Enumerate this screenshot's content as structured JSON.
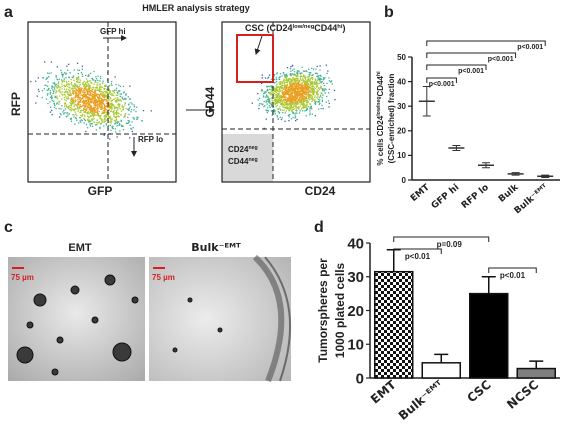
{
  "panel_labels": [
    "a",
    "b",
    "c",
    "d"
  ],
  "flow": {
    "title": "HMLER analysis strategy",
    "left": {
      "x_label": "GFP",
      "y_label": "RFP",
      "gate_x": "GFP hi",
      "gate_y": "RFP lo"
    },
    "right": {
      "x_label": "CD24",
      "y_label": "CD44",
      "csc_label": [
        {
          "text": "CSC (CD24"
        },
        {
          "text": "low/neg",
          "sup": true
        },
        {
          "text": "CD44"
        },
        {
          "text": "hi",
          "sup": true
        },
        {
          "text": ")"
        }
      ],
      "neg_label": [
        [
          {
            "text": "CD24"
          },
          {
            "text": "neg",
            "sup": true
          }
        ],
        [
          {
            "text": "CD44"
          },
          {
            "text": "neg",
            "sup": true
          }
        ]
      ]
    }
  },
  "images": {
    "left_title": "EMT",
    "right_title": "Bulk⁻ᴱᴹᵀ",
    "scale_bar": "75 µm"
  },
  "chart_data": [
    {
      "type": "dot",
      "ylabel": [
        [
          {
            "text": "% cells CD24"
          },
          {
            "text": "low/neg",
            "sup": true
          },
          {
            "text": "CD44"
          },
          {
            "text": "hi",
            "sup": true
          }
        ],
        [
          {
            "text": "(CSC-enriched) fraction"
          }
        ]
      ],
      "categories": [
        "EMT",
        "GFP hi",
        "RFP lo",
        "Bulk",
        "Bulk⁻ᴱᴹᵀ"
      ],
      "values": [
        32,
        13,
        6,
        2.5,
        1.5
      ],
      "errors": [
        6,
        1,
        1,
        0.5,
        0.5
      ],
      "color": "#333333",
      "ylim": [
        0,
        50
      ],
      "yticks": [
        0,
        10,
        20,
        30,
        40,
        50
      ],
      "annotations": [
        {
          "text": "p<0.001",
          "from": 0,
          "to": 1
        },
        {
          "text": "p<0.001",
          "from": 0,
          "to": 2
        },
        {
          "text": "p<0.001",
          "from": 0,
          "to": 3
        },
        {
          "text": "p<0.001",
          "from": 0,
          "to": 4
        }
      ]
    },
    {
      "type": "bar",
      "ylabel": [
        [
          {
            "text": "Tumorspheres per"
          }
        ],
        [
          {
            "text": "1000  plated cells"
          }
        ]
      ],
      "categories": [
        "EMT",
        "Bulk⁻ᴱᴹᵀ",
        "CSC",
        "NCSC"
      ],
      "values": [
        31.5,
        4.5,
        25,
        2.8
      ],
      "errors": [
        6.5,
        2.5,
        5,
        2.2
      ],
      "colors": [
        "checker",
        "#ffffff",
        "#000000",
        "#808080"
      ],
      "ylim": [
        0,
        40
      ],
      "yticks": [
        0,
        10,
        20,
        30,
        40
      ],
      "annotations": [
        {
          "text": "p<0.01",
          "from": 0,
          "to": 1
        },
        {
          "text": "p=0.09",
          "from": 0,
          "to": 2
        },
        {
          "text": "p<0.01",
          "from": 2,
          "to": 3
        }
      ]
    }
  ]
}
